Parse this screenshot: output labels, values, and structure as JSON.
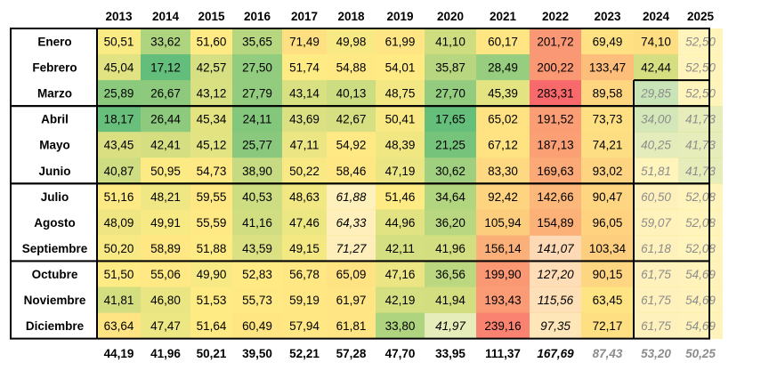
{
  "chart_data": {
    "type": "heatmap",
    "title": "",
    "columns": [
      "2013",
      "2014",
      "2015",
      "2016",
      "2017",
      "2018",
      "2019",
      "2020",
      "2021",
      "2022",
      "2023",
      "2024",
      "2025"
    ],
    "rows": [
      {
        "label": "Enero",
        "values": [
          "50,51",
          "33,62",
          "51,60",
          "35,65",
          "71,49",
          "49,98",
          "61,99",
          "41,10",
          "60,17",
          "201,72",
          "69,49",
          "74,10",
          "52,50"
        ],
        "estimated": [
          false,
          false,
          false,
          false,
          false,
          false,
          false,
          false,
          false,
          false,
          false,
          false,
          true
        ]
      },
      {
        "label": "Febrero",
        "values": [
          "45,04",
          "17,12",
          "42,57",
          "27,50",
          "51,74",
          "54,88",
          "54,01",
          "35,87",
          "28,49",
          "200,22",
          "133,47",
          "42,44",
          "52,50"
        ],
        "estimated": [
          false,
          false,
          false,
          false,
          false,
          false,
          false,
          false,
          false,
          false,
          false,
          false,
          true
        ]
      },
      {
        "label": "Marzo",
        "values": [
          "25,89",
          "26,67",
          "43,12",
          "27,79",
          "43,14",
          "40,13",
          "48,75",
          "27,70",
          "45,39",
          "283,31",
          "89,58",
          "29,85",
          "52,50"
        ],
        "estimated": [
          false,
          false,
          false,
          false,
          false,
          false,
          false,
          false,
          false,
          false,
          false,
          true,
          true
        ]
      },
      {
        "label": "Abril",
        "values": [
          "18,17",
          "26,44",
          "45,34",
          "24,11",
          "43,69",
          "42,67",
          "50,41",
          "17,65",
          "65,02",
          "191,52",
          "73,73",
          "34,00",
          "41,73"
        ],
        "estimated": [
          false,
          false,
          false,
          false,
          false,
          false,
          false,
          false,
          false,
          false,
          false,
          true,
          true
        ]
      },
      {
        "label": "Mayo",
        "values": [
          "43,45",
          "42,41",
          "45,12",
          "25,77",
          "47,11",
          "54,92",
          "48,39",
          "21,25",
          "67,12",
          "187,13",
          "74,21",
          "40,25",
          "41,73"
        ],
        "estimated": [
          false,
          false,
          false,
          false,
          false,
          false,
          false,
          false,
          false,
          false,
          false,
          true,
          true
        ]
      },
      {
        "label": "Junio",
        "values": [
          "40,87",
          "50,95",
          "54,73",
          "38,90",
          "50,22",
          "58,46",
          "47,19",
          "30,62",
          "83,30",
          "169,63",
          "93,02",
          "51,81",
          "41,73"
        ],
        "estimated": [
          false,
          false,
          false,
          false,
          false,
          false,
          false,
          false,
          false,
          false,
          false,
          true,
          true
        ]
      },
      {
        "label": "Julio",
        "values": [
          "51,16",
          "48,21",
          "59,55",
          "40,53",
          "48,63",
          "61,88",
          "51,46",
          "34,64",
          "92,42",
          "142,66",
          "90,47",
          "60,50",
          "52,08"
        ],
        "estimated": [
          false,
          false,
          false,
          false,
          false,
          true,
          false,
          false,
          false,
          false,
          false,
          true,
          true
        ]
      },
      {
        "label": "Agosto",
        "values": [
          "48,09",
          "49,91",
          "55,59",
          "41,16",
          "47,46",
          "64,33",
          "44,96",
          "36,20",
          "105,94",
          "154,89",
          "96,05",
          "59,07",
          "52,08"
        ],
        "estimated": [
          false,
          false,
          false,
          false,
          false,
          true,
          false,
          false,
          false,
          false,
          false,
          true,
          true
        ]
      },
      {
        "label": "Septiembre",
        "values": [
          "50,20",
          "58,89",
          "51,88",
          "43,59",
          "49,15",
          "71,27",
          "42,11",
          "41,96",
          "156,14",
          "141,07",
          "103,34",
          "61,18",
          "52,08"
        ],
        "estimated": [
          false,
          false,
          false,
          false,
          false,
          true,
          false,
          false,
          false,
          true,
          false,
          true,
          true
        ]
      },
      {
        "label": "Octubre",
        "values": [
          "51,50",
          "55,06",
          "49,90",
          "52,83",
          "56,78",
          "65,09",
          "47,16",
          "36,56",
          "199,90",
          "127,20",
          "90,15",
          "61,75",
          "54,69"
        ],
        "estimated": [
          false,
          false,
          false,
          false,
          false,
          false,
          false,
          false,
          false,
          true,
          false,
          true,
          true
        ]
      },
      {
        "label": "Noviembre",
        "values": [
          "41,81",
          "46,80",
          "51,53",
          "55,73",
          "59,19",
          "61,97",
          "42,19",
          "41,94",
          "193,43",
          "115,56",
          "63,45",
          "61,75",
          "54,69"
        ],
        "estimated": [
          false,
          false,
          false,
          false,
          false,
          false,
          false,
          false,
          false,
          true,
          false,
          true,
          true
        ]
      },
      {
        "label": "Diciembre",
        "values": [
          "63,64",
          "47,47",
          "51,64",
          "60,49",
          "57,94",
          "61,81",
          "33,80",
          "41,97",
          "239,16",
          "97,35",
          "72,17",
          "61,75",
          "54,69"
        ],
        "estimated": [
          false,
          false,
          false,
          false,
          false,
          false,
          false,
          true,
          false,
          true,
          false,
          true,
          true
        ]
      }
    ],
    "totals": {
      "values": [
        "44,19",
        "41,96",
        "50,21",
        "39,50",
        "52,21",
        "57,28",
        "47,70",
        "33,95",
        "111,37",
        "167,69",
        "87,43",
        "53,20",
        "50,25"
      ],
      "estimated": [
        false,
        false,
        false,
        false,
        false,
        false,
        false,
        false,
        false,
        true,
        true,
        true,
        true
      ]
    },
    "color_scale": {
      "low": "#63be7b",
      "mid": "#ffeb84",
      "high": "#f8696b"
    },
    "estimated_text_color": "#8c8c8c",
    "text_color": "#000000"
  }
}
